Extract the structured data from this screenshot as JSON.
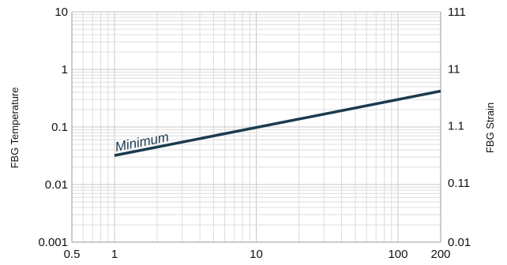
{
  "chart_data": {
    "type": "line",
    "xscale": "log",
    "yscale": "log",
    "grid": true,
    "xlim": [
      0.5,
      200
    ],
    "ylim": [
      0.001,
      10
    ],
    "y2lim": [
      0.01,
      111
    ],
    "xticks": [
      {
        "value": 0.5,
        "label": "0.5"
      },
      {
        "value": 1,
        "label": "1"
      },
      {
        "value": 10,
        "label": "10"
      },
      {
        "value": 100,
        "label": "100"
      },
      {
        "value": 200,
        "label": "200"
      }
    ],
    "yticks": [
      {
        "value": 10,
        "label": "10"
      },
      {
        "value": 1,
        "label": "1"
      },
      {
        "value": 0.1,
        "label": "0.1"
      },
      {
        "value": 0.01,
        "label": "0.01"
      },
      {
        "value": 0.001,
        "label": "0.001"
      }
    ],
    "y2ticks": [
      {
        "value": 111,
        "label": "111"
      },
      {
        "value": 11,
        "label": "11"
      },
      {
        "value": 1.1,
        "label": "1.1"
      },
      {
        "value": 0.11,
        "label": "0.11"
      },
      {
        "value": 0.01,
        "label": "0.01"
      }
    ],
    "ylabel": "FBG Temperature",
    "y2label": "FBG Strain",
    "series": [
      {
        "name": "Minimum",
        "color": "#1a3a4f",
        "x": [
          1,
          200
        ],
        "y": [
          0.032,
          0.42
        ]
      }
    ]
  }
}
